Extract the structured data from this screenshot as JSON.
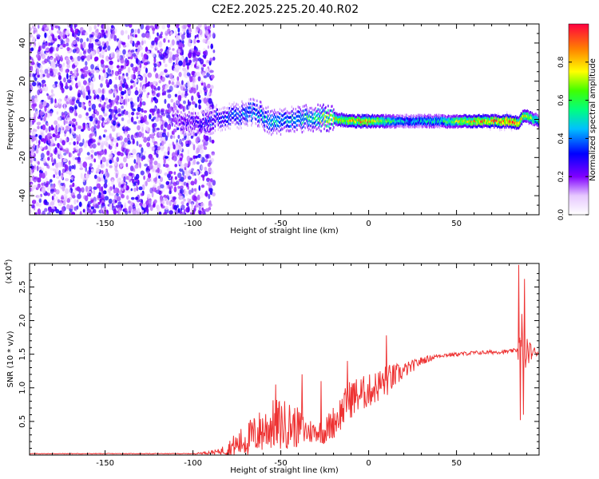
{
  "title": "C2E2.2025.225.20.40.R02",
  "chart_data": [
    {
      "type": "heatmap",
      "xlabel": "Height of straight line (km)",
      "ylabel": "Frequency (Hz)",
      "xlim": [
        -193,
        97
      ],
      "ylim": [
        -50,
        50
      ],
      "xticks": [
        -150,
        -100,
        -50,
        0,
        50
      ],
      "yticks": [
        -40,
        -20,
        0,
        20,
        40
      ],
      "colorbar": {
        "label": "Normalized spectral amplitude",
        "range": [
          0.0,
          1.0
        ],
        "ticks": [
          0.0,
          0.2,
          0.4,
          0.6,
          0.8
        ],
        "tick_labels": [
          "0.0",
          "0.2",
          "0.4",
          "0.6",
          "0.8"
        ],
        "colormap": "rainbow"
      },
      "structure": {
        "noise_region_x": [
          -193,
          -88
        ],
        "noise_level": [
          0.05,
          0.3
        ],
        "band_start_x": -112,
        "band_center_points": [
          [
            -110,
            0
          ],
          [
            -95,
            -2
          ],
          [
            -85,
            1
          ],
          [
            -75,
            2
          ],
          [
            -65,
            4
          ],
          [
            -55,
            -2
          ],
          [
            -40,
            0
          ],
          [
            -25,
            1
          ],
          [
            -10,
            -1
          ],
          [
            0,
            -1
          ],
          [
            20,
            -1
          ],
          [
            40,
            -1
          ],
          [
            60,
            -1
          ],
          [
            80,
            -1
          ],
          [
            85,
            -2
          ],
          [
            88,
            2
          ],
          [
            97,
            -1
          ]
        ],
        "band_amplitude_points": [
          [
            -110,
            0.2
          ],
          [
            -90,
            0.3
          ],
          [
            -80,
            0.35
          ],
          [
            -60,
            0.45
          ],
          [
            -40,
            0.45
          ],
          [
            -20,
            0.7
          ],
          [
            0,
            0.8
          ],
          [
            20,
            0.4
          ],
          [
            40,
            0.5
          ],
          [
            60,
            0.8
          ],
          [
            80,
            0.9
          ],
          [
            97,
            0.5
          ]
        ]
      }
    },
    {
      "type": "line",
      "xlabel": "Height of straight line (km)",
      "ylabel": "SNR (10 * v/v)",
      "y_multiplier_label": "(x10",
      "y_multiplier_exp": "4",
      "xlim": [
        -193,
        97
      ],
      "ylim": [
        0,
        2.85
      ],
      "xticks": [
        -150,
        -100,
        -50,
        0,
        50
      ],
      "yticks": [
        0.5,
        1.0,
        1.5,
        2.0,
        2.5
      ],
      "ytick_labels": [
        "0.5",
        "1.0",
        "1.5",
        "2.0",
        "2.5"
      ],
      "series": [
        {
          "color": "#ee3333",
          "trend": [
            [
              -193,
              0.02
            ],
            [
              -100,
              0.02
            ],
            [
              -85,
              0.05
            ],
            [
              -75,
              0.15
            ],
            [
              -65,
              0.3
            ],
            [
              -55,
              0.45
            ],
            [
              -45,
              0.45
            ],
            [
              -35,
              0.35
            ],
            [
              -25,
              0.35
            ],
            [
              -18,
              0.55
            ],
            [
              -10,
              0.85
            ],
            [
              0,
              0.95
            ],
            [
              10,
              1.1
            ],
            [
              20,
              1.25
            ],
            [
              30,
              1.4
            ],
            [
              40,
              1.48
            ],
            [
              60,
              1.52
            ],
            [
              80,
              1.54
            ],
            [
              84,
              1.56
            ],
            [
              97,
              1.52
            ]
          ],
          "noise_amp": [
            [
              -193,
              0.005
            ],
            [
              -100,
              0.005
            ],
            [
              -85,
              0.04
            ],
            [
              -75,
              0.2
            ],
            [
              -60,
              0.35
            ],
            [
              -50,
              0.4
            ],
            [
              -40,
              0.3
            ],
            [
              -30,
              0.15
            ],
            [
              -20,
              0.25
            ],
            [
              -10,
              0.3
            ],
            [
              0,
              0.25
            ],
            [
              10,
              0.25
            ],
            [
              20,
              0.12
            ],
            [
              30,
              0.06
            ],
            [
              40,
              0.03
            ],
            [
              84,
              0.03
            ],
            [
              86,
              0.3
            ],
            [
              90,
              0.2
            ],
            [
              97,
              0.02
            ]
          ],
          "spikes": [
            [
              85.5,
              2.83
            ],
            [
              86.3,
              0.52
            ],
            [
              87.2,
              2.1
            ],
            [
              88.0,
              0.6
            ],
            [
              88.6,
              2.62
            ],
            [
              89.3,
              1.3
            ],
            [
              -38,
              1.2
            ],
            [
              -12,
              1.4
            ],
            [
              10,
              1.78
            ],
            [
              -53,
              1.05
            ],
            [
              -27,
              1.1
            ]
          ]
        }
      ]
    }
  ]
}
